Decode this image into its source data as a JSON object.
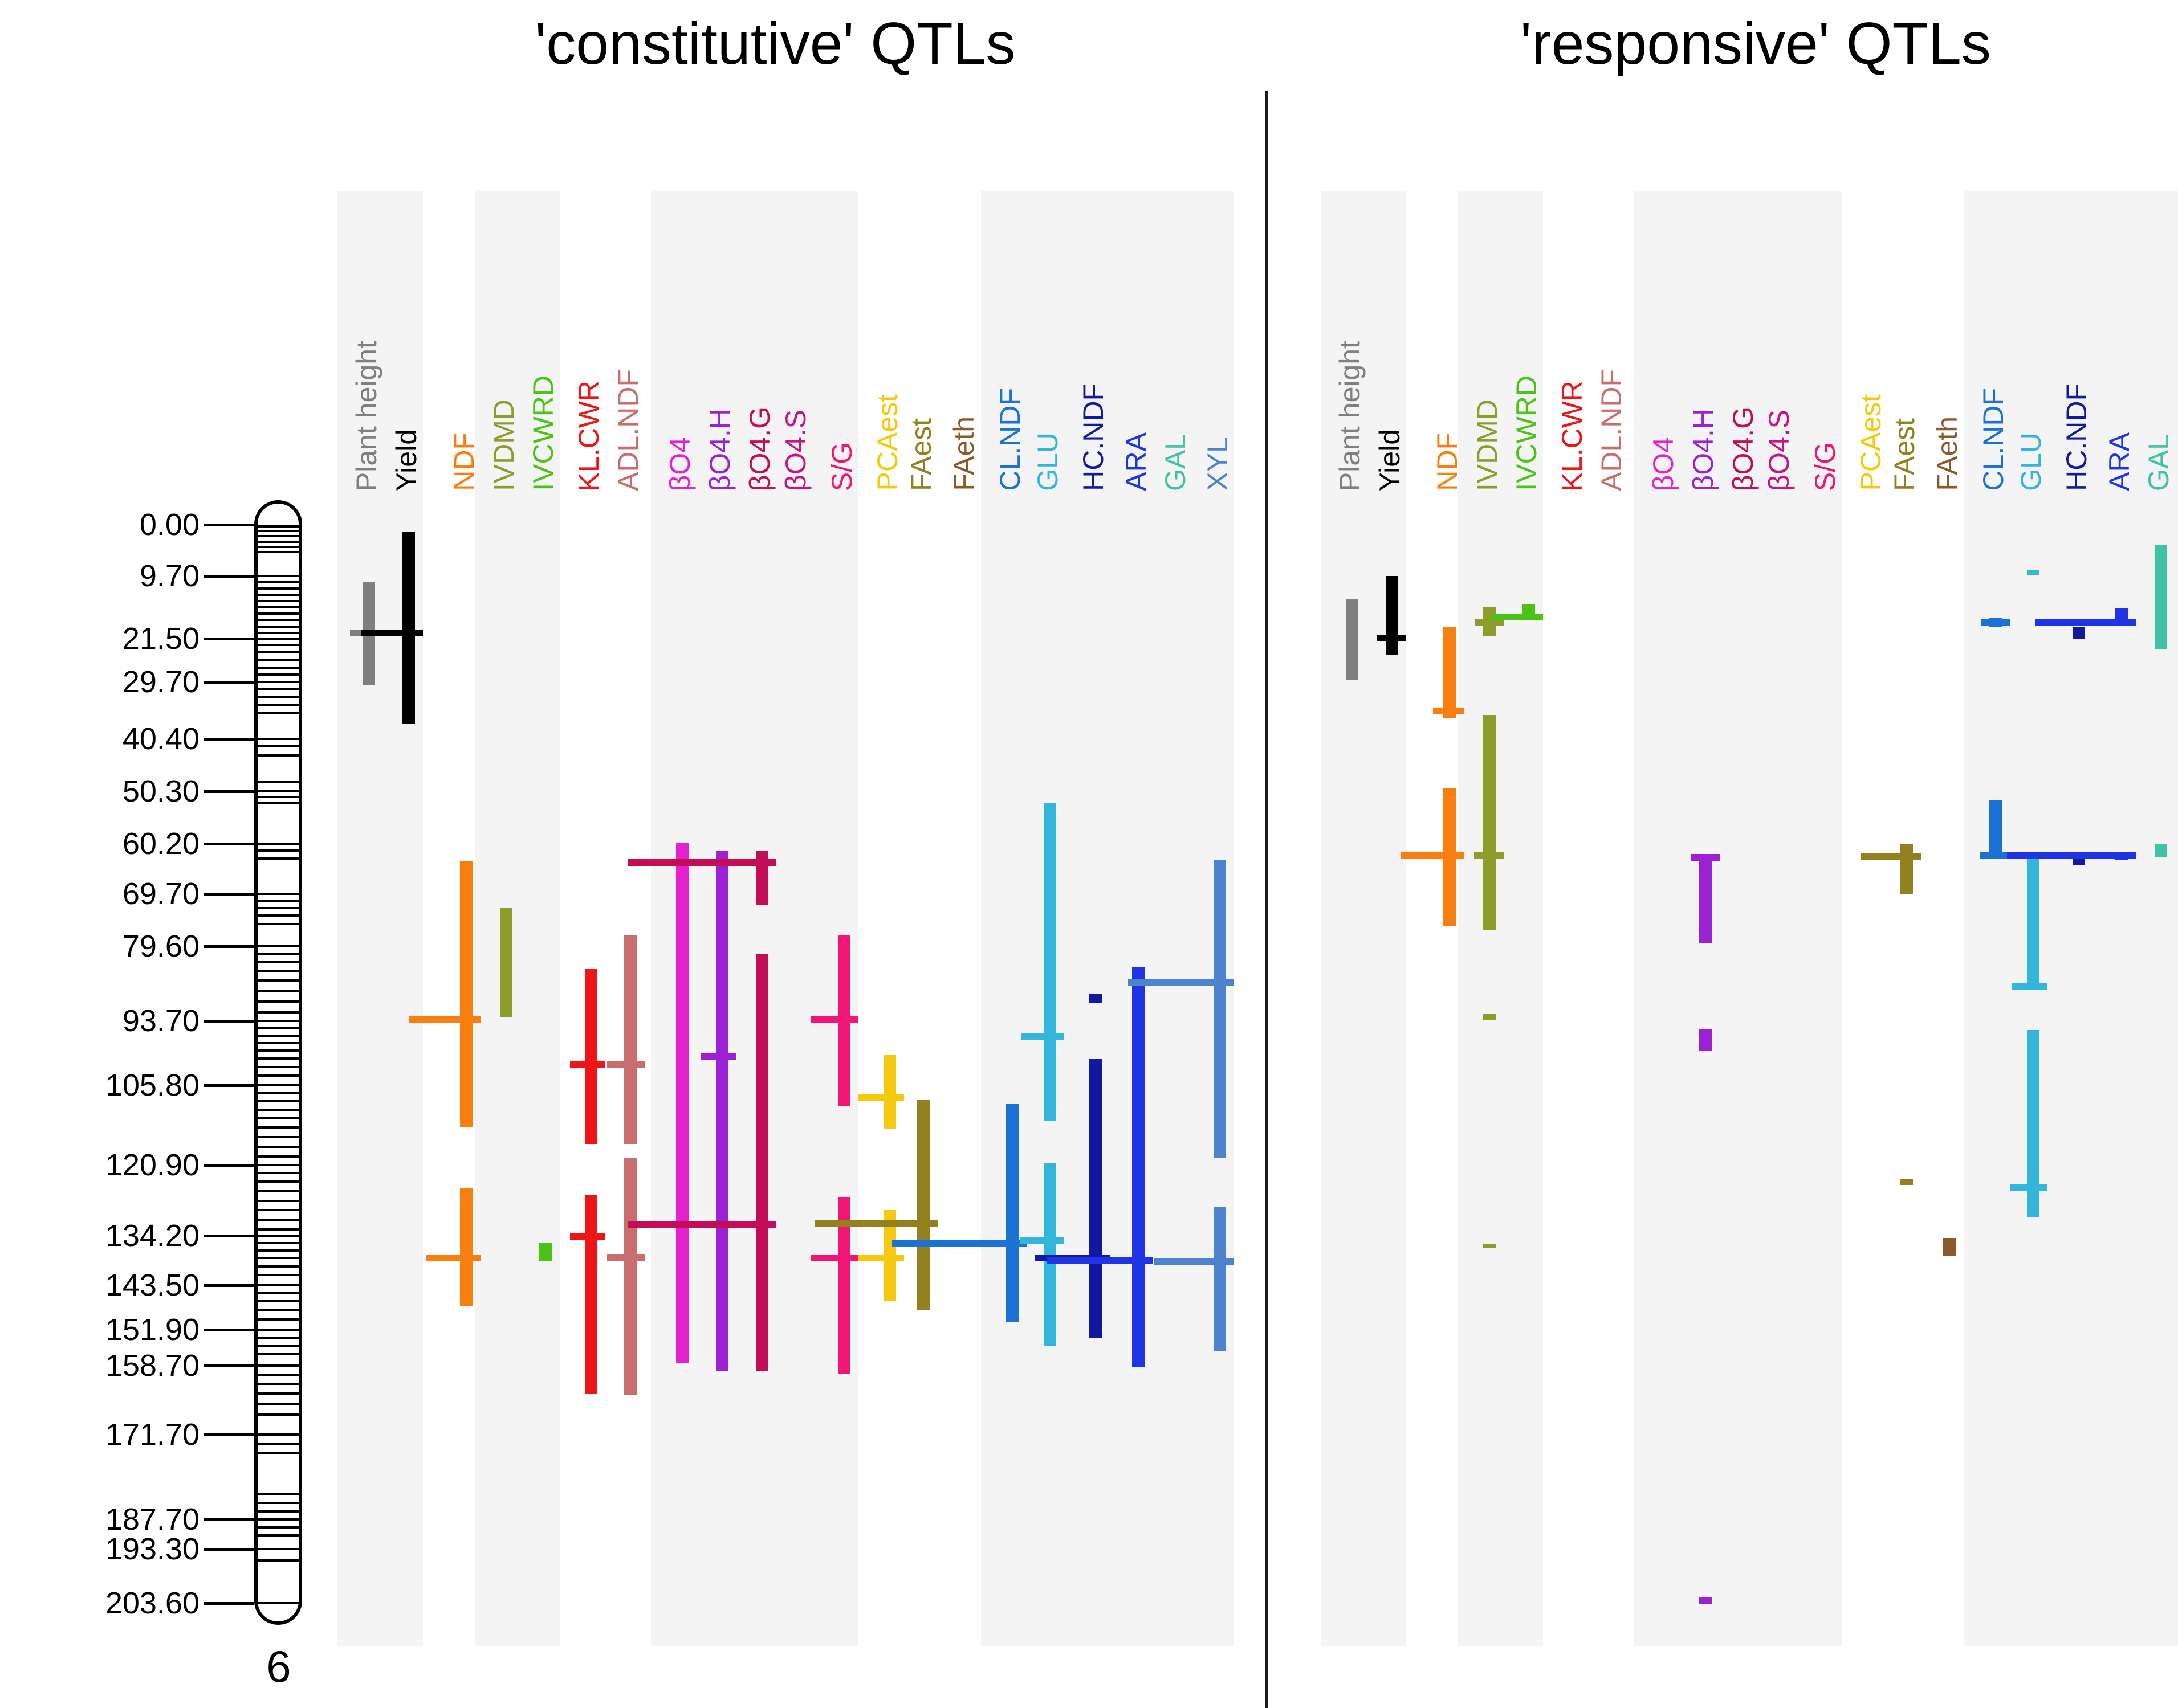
{
  "chart_data": {
    "type": "qtl_map",
    "description": "QTL intervals on maize chromosome 6 for two panels; vertical colored bars span start-end positions in cM, horizontal whiskers mark peak positions",
    "titles": {
      "left": "'constitutive' QTLs",
      "right": "'responsive' QTLs"
    },
    "chromosome": {
      "name": "6"
    },
    "position_tick_labels": [
      "0.00",
      "9.70",
      "21.50",
      "29.70",
      "40.40",
      "50.30",
      "60.20",
      "69.70",
      "79.60",
      "93.70",
      "105.80",
      "120.90",
      "134.20",
      "143.50",
      "151.90",
      "158.70",
      "171.70",
      "187.70",
      "193.30",
      "203.60"
    ],
    "position_tick_values": [
      0,
      9.7,
      21.5,
      29.7,
      40.4,
      50.3,
      60.2,
      69.7,
      79.6,
      93.7,
      105.8,
      120.9,
      134.2,
      143.5,
      151.9,
      158.7,
      171.7,
      187.7,
      193.3,
      203.6
    ],
    "axis_range_cm": [
      0,
      203.6
    ],
    "marker_positions": [
      0.3,
      1.2,
      2.2,
      3.2,
      4.2,
      5.2,
      9.7,
      10.8,
      12,
      13.2,
      14.4,
      15.6,
      16.8,
      18,
      19.2,
      20.4,
      21.5,
      22.7,
      24,
      25.5,
      27,
      28.3,
      29.7,
      31,
      32.5,
      34,
      35.5,
      40.4,
      41.8,
      43.5,
      48.5,
      50.3,
      51.4,
      52.6,
      60.2,
      61.5,
      63,
      69.7,
      71,
      72.4,
      73.8,
      75.4,
      79.6,
      81,
      82.5,
      84.2,
      86,
      88,
      90,
      92,
      93.7,
      95,
      96.4,
      97.8,
      99.2,
      100.8,
      102.4,
      104,
      105.8,
      107.2,
      108.8,
      110.4,
      112,
      113.8,
      115.6,
      117.4,
      119.2,
      120.9,
      122.4,
      124,
      125.8,
      127.6,
      129.4,
      131.2,
      133,
      134.2,
      135.6,
      137,
      138.4,
      140,
      141.6,
      143.5,
      145,
      146.6,
      148.2,
      150,
      151.9,
      153.4,
      155,
      156.6,
      158.7,
      160.4,
      162.2,
      164,
      166,
      168,
      171.7,
      173.4,
      175.2,
      183,
      184.6,
      186.2,
      187.7,
      189.2,
      190.8,
      193.3,
      195.5,
      203.6
    ],
    "traits": [
      {
        "id": "plant_height",
        "label": "Plant height",
        "color": "#7f7f7f"
      },
      {
        "id": "yield",
        "label": "Yield",
        "color": "#000000"
      },
      {
        "id": "ndf",
        "label": "NDF",
        "color": "#f87e0e"
      },
      {
        "id": "ivdmd",
        "label": "IVDMD",
        "color": "#8e9c2a"
      },
      {
        "id": "ivcwrd",
        "label": "IVCWRD",
        "color": "#4cc417"
      },
      {
        "id": "kl_cwr",
        "label": "KL.CWR",
        "color": "#ed1515"
      },
      {
        "id": "adl_ndf",
        "label": "ADL.NDF",
        "color": "#c86e6e"
      },
      {
        "id": "bo4",
        "label": "βO4",
        "color": "#e521cf"
      },
      {
        "id": "bo4_h",
        "label": "βO4.H",
        "color": "#9a22d4"
      },
      {
        "id": "bo4_g",
        "label": "βO4.G",
        "color": "#c40d57"
      },
      {
        "id": "bo4_s",
        "label": "βO4.S",
        "color": "#c71585"
      },
      {
        "id": "s_g",
        "label": "S/G",
        "color": "#f01576"
      },
      {
        "id": "pcaest",
        "label": "PCAest",
        "color": "#f5ca0e"
      },
      {
        "id": "faest",
        "label": "FAest",
        "color": "#93801f"
      },
      {
        "id": "faeth",
        "label": "FAeth",
        "color": "#8a5a2a"
      },
      {
        "id": "cl_ndf",
        "label": "CL.NDF",
        "color": "#1a73d4"
      },
      {
        "id": "glu",
        "label": "GLU",
        "color": "#33b6dc"
      },
      {
        "id": "hc_ndf",
        "label": "HC.NDF",
        "color": "#111a9e"
      },
      {
        "id": "ara",
        "label": "ARA",
        "color": "#1f35e5"
      },
      {
        "id": "gal",
        "label": "GAL",
        "color": "#3fc2a5"
      },
      {
        "id": "xyl",
        "label": "XYL",
        "color": "#4d82cc"
      }
    ],
    "stripe_groups": [
      [
        0,
        1
      ],
      [
        3,
        4
      ],
      [
        7,
        11
      ],
      [
        15,
        20
      ]
    ],
    "qtls": [
      {
        "panel": "constitutive",
        "trait": 0,
        "start": 10.9,
        "end": 30.3,
        "peak": 20.4,
        "wl": 22
      },
      {
        "panel": "constitutive",
        "trait": 1,
        "start": 1.4,
        "end": 37.6,
        "peak": 20.4,
        "wl": 72
      },
      {
        "panel": "constitutive",
        "trait": 2,
        "start": 63.4,
        "end": 113.8,
        "peak": 93.3,
        "wl": 90
      },
      {
        "panel": "constitutive",
        "trait": 2,
        "start": 125.2,
        "end": 147.5,
        "peak": 138.4,
        "wl": 60
      },
      {
        "panel": "constitutive",
        "trait": 3,
        "start": 72.3,
        "end": 92.9,
        "peak": null,
        "wl": 0
      },
      {
        "panel": "constitutive",
        "trait": 4,
        "start": 135.5,
        "end": 139.0,
        "peak": null,
        "wl": 0
      },
      {
        "panel": "constitutive",
        "trait": 5,
        "start": 83.8,
        "end": 116.9,
        "peak": 101.8,
        "wl": 26
      },
      {
        "panel": "constitutive",
        "trait": 5,
        "start": 126.5,
        "end": 164.1,
        "peak": 134.4,
        "wl": 26
      },
      {
        "panel": "constitutive",
        "trait": 6,
        "start": 77.4,
        "end": 116.9,
        "peak": 101.8,
        "wl": 30
      },
      {
        "panel": "constitutive",
        "trait": 6,
        "start": 119.6,
        "end": 164.3,
        "peak": 138.3,
        "wl": 30
      },
      {
        "panel": "constitutive",
        "trait": 7,
        "start": 60.0,
        "end": 158.2,
        "peak": 132.0,
        "wl": 26
      },
      {
        "panel": "constitutive",
        "trait": 8,
        "start": 61.5,
        "end": 159.8,
        "peak": 100.4,
        "wl": 26
      },
      {
        "panel": "constitutive",
        "trait": 9,
        "start": 61.5,
        "end": 71.7,
        "peak": 63.8,
        "wl": 225
      },
      {
        "panel": "constitutive",
        "trait": 9,
        "start": 81.0,
        "end": 159.8,
        "peak": 132.1,
        "wl": 225
      },
      {
        "panel": "constitutive",
        "trait": 11,
        "start": 77.4,
        "end": 109.8,
        "peak": 93.4,
        "wl": 48
      },
      {
        "panel": "constitutive",
        "trait": 11,
        "start": 126.9,
        "end": 160.2,
        "peak": 138.4,
        "wl": 48
      },
      {
        "panel": "constitutive",
        "trait": 12,
        "start": 100.1,
        "end": 114.0,
        "peak": 108.1,
        "wl": 44
      },
      {
        "panel": "constitutive",
        "trait": 12,
        "start": 129.2,
        "end": 146.5,
        "peak": 138.4,
        "wl": 44
      },
      {
        "panel": "constitutive",
        "trait": 13,
        "start": 108.5,
        "end": 148.3,
        "peak": 131.9,
        "wl": 180
      },
      {
        "panel": "constitutive",
        "trait": 15,
        "start": 109.3,
        "end": 150.5,
        "peak": 135.7,
        "wl": 200
      },
      {
        "panel": "constitutive",
        "trait": 16,
        "start": 52.5,
        "end": 112.5,
        "peak": 96.6,
        "wl": 40
      },
      {
        "panel": "constitutive",
        "trait": 16,
        "start": 120.5,
        "end": 155.0,
        "peak": 135.0,
        "wl": 42
      },
      {
        "panel": "constitutive",
        "trait": 17,
        "start": 88.5,
        "end": 90.3,
        "peak": null,
        "wl": 0
      },
      {
        "panel": "constitutive",
        "trait": 17,
        "start": 100.9,
        "end": 153.5,
        "peak": 138.4,
        "wl": 95
      },
      {
        "panel": "constitutive",
        "trait": 18,
        "start": 83.5,
        "end": 158.9,
        "peak": 138.8,
        "wl": 150
      },
      {
        "panel": "constitutive",
        "trait": 20,
        "start": 63.3,
        "end": 119.6,
        "peak": 86.4,
        "wl": 150
      },
      {
        "panel": "constitutive",
        "trait": 20,
        "start": 128.7,
        "end": 155.9,
        "peak": 139.0,
        "wl": 105
      },
      {
        "panel": "responsive",
        "trait": 0,
        "start": 14.0,
        "end": 29.3,
        "peak": null,
        "wl": 0
      },
      {
        "panel": "responsive",
        "trait": 1,
        "start": 9.7,
        "end": 24.6,
        "peak": 21.4,
        "wl": 16
      },
      {
        "panel": "responsive",
        "trait": 2,
        "start": 19.2,
        "end": 36.5,
        "peak": 35.2,
        "wl": 18
      },
      {
        "panel": "responsive",
        "trait": 2,
        "start": 49.7,
        "end": 75.7,
        "peak": 62.5,
        "wl": 75
      },
      {
        "panel": "responsive",
        "trait": 3,
        "start": 15.6,
        "end": 21.1,
        "peak": 18.5,
        "wl": 14
      },
      {
        "panel": "responsive",
        "trait": 3,
        "start": 35.9,
        "end": 76.4,
        "peak": 62.5,
        "wl": 16
      },
      {
        "panel": "responsive",
        "trait": 3,
        "start": 92.4,
        "end": 93.6,
        "peak": null,
        "wl": 0
      },
      {
        "panel": "responsive",
        "trait": 3,
        "start": 135.7,
        "end": 136.5,
        "peak": null,
        "wl": 0
      },
      {
        "panel": "responsive",
        "trait": 4,
        "start": 14.9,
        "end": 17.8,
        "peak": 17.4,
        "wl": 55
      },
      {
        "panel": "responsive",
        "trait": 8,
        "start": 62.3,
        "end": 79.0,
        "peak": 62.8,
        "wl": 14
      },
      {
        "panel": "responsive",
        "trait": 8,
        "start": 95.2,
        "end": 99.3,
        "peak": null,
        "wl": 0
      },
      {
        "panel": "responsive",
        "trait": 8,
        "start": 202.5,
        "end": 203.7,
        "peak": null,
        "wl": 0
      },
      {
        "panel": "responsive",
        "trait": 13,
        "start": 60.3,
        "end": 69.7,
        "peak": 62.6,
        "wl": 70
      },
      {
        "panel": "responsive",
        "trait": 13,
        "start": 123.6,
        "end": 124.6,
        "peak": null,
        "wl": 0
      },
      {
        "panel": "responsive",
        "trait": 14,
        "start": 134.6,
        "end": 138.0,
        "peak": null,
        "wl": 0
      },
      {
        "panel": "responsive",
        "trait": 15,
        "start": 17.5,
        "end": 19.3,
        "peak": 18.4,
        "wl": 14
      },
      {
        "panel": "responsive",
        "trait": 15,
        "start": 52.0,
        "end": 63.0,
        "peak": 62.5,
        "wl": 16
      },
      {
        "panel": "responsive",
        "trait": 16,
        "start": 8.5,
        "end": 9.6,
        "peak": null,
        "wl": 0
      },
      {
        "panel": "responsive",
        "trait": 16,
        "start": 62.9,
        "end": 87.7,
        "peak": 87.2,
        "wl": 26
      },
      {
        "panel": "responsive",
        "trait": 16,
        "start": 95.4,
        "end": 130.8,
        "peak": 125.0,
        "wl": 30
      },
      {
        "panel": "responsive",
        "trait": 17,
        "start": 19.4,
        "end": 21.6,
        "peak": null,
        "wl": 0
      },
      {
        "panel": "responsive",
        "trait": 17,
        "start": 62.8,
        "end": 64.3,
        "peak": null,
        "wl": 0
      },
      {
        "panel": "responsive",
        "trait": 18,
        "start": 15.8,
        "end": 18.8,
        "peak": 18.5,
        "wl": 140
      },
      {
        "panel": "responsive",
        "trait": 18,
        "start": 61.8,
        "end": 63.2,
        "peak": 62.5,
        "wl": 190
      },
      {
        "panel": "responsive",
        "trait": 19,
        "start": 3.9,
        "end": 23.5,
        "peak": null,
        "wl": 0
      },
      {
        "panel": "responsive",
        "trait": 19,
        "start": 60.2,
        "end": 62.7,
        "peak": null,
        "wl": 0
      }
    ]
  }
}
